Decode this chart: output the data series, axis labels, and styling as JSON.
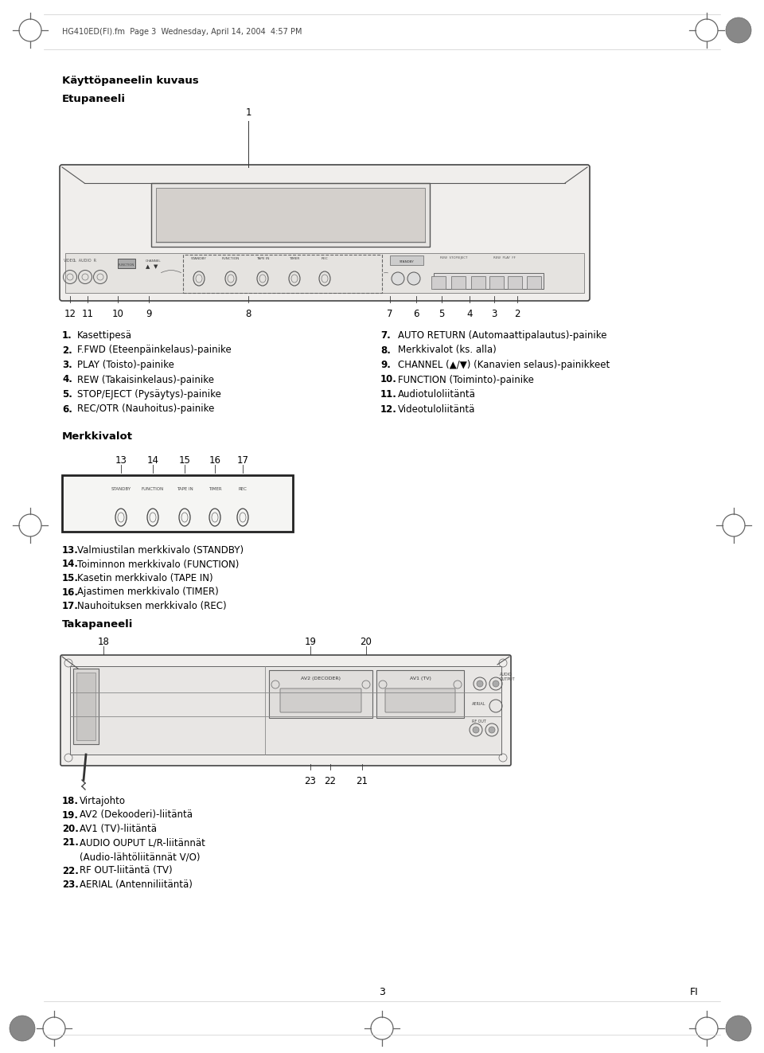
{
  "bg_color": "#ffffff",
  "header_text": "HG410ED(FI).fm  Page 3  Wednesday, April 14, 2004  4:57 PM",
  "title1": "Käyttöpaneelin kuvaus",
  "title2": "Etupaneeli",
  "title3": "Merkkivalot",
  "title4": "Takapaneeli",
  "front_labels_left": [
    [
      "1.",
      "Kasettipesä"
    ],
    [
      "2.",
      "F.FWD (Eteenpäinkelaus)-painike"
    ],
    [
      "3.",
      "PLAY (Toisto)-painike"
    ],
    [
      "4.",
      "REW (Takaisinkelaus)-painike"
    ],
    [
      "5.",
      "STOP/EJECT (Pysäytys)-painike"
    ],
    [
      "6.",
      "REC/OTR (Nauhoitus)-painike"
    ]
  ],
  "front_labels_right": [
    [
      "7.",
      "AUTO RETURN (Automaattipalautus)-painike"
    ],
    [
      "8.",
      "Merkkivalot (ks. alla)"
    ],
    [
      "9.",
      "CHANNEL (▲/▼) (Kanavien selaus)-painikkeet"
    ],
    [
      "10.",
      "FUNCTION (Toiminto)-painike"
    ],
    [
      "11.",
      "Audiotuloliitäntä"
    ],
    [
      "12.",
      "Videotuloliitäntä"
    ]
  ],
  "indicator_labels": [
    [
      "13.",
      "Valmiustilan merkkivalo (STANDBY)"
    ],
    [
      "14.",
      "Toiminnon merkkivalo (FUNCTION)"
    ],
    [
      "15.",
      "Kasetin merkkivalo (TAPE IN)"
    ],
    [
      "16.",
      "Ajastimen merkkivalo (TIMER)"
    ],
    [
      "17.",
      "Nauhoituksen merkkivalo (REC)"
    ]
  ],
  "back_labels": [
    [
      "18.",
      "Virtajohto"
    ],
    [
      "19.",
      "AV2 (Dekooderi)-liitäntä"
    ],
    [
      "20.",
      "AV1 (TV)-liitäntä"
    ],
    [
      "21.",
      "AUDIO OUPUT L/R-liitännät"
    ],
    [
      "",
      "(Audio-lähtöliitännät V/O)"
    ],
    [
      "22.",
      "RF OUT-liitäntä (TV)"
    ],
    [
      "23.",
      "AERIAL (Antenniliitäntä)"
    ]
  ],
  "indicator_sublabels": [
    "STANDBY",
    "FUNCTION",
    "TAPE IN",
    "TIMER",
    "REC"
  ],
  "page_number": "3",
  "page_fi": "FI"
}
